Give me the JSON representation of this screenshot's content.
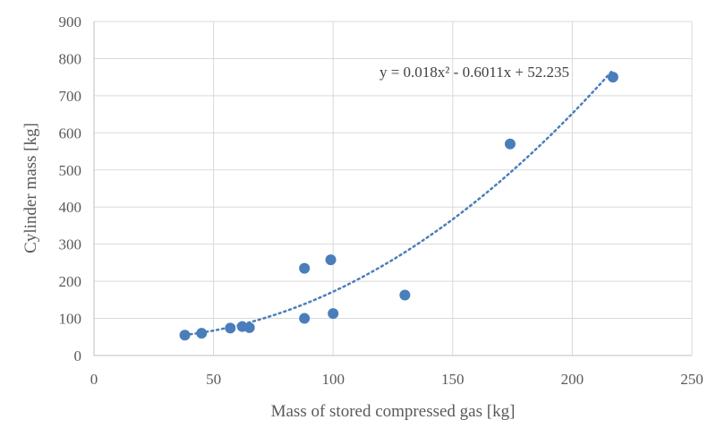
{
  "chart_data": {
    "type": "scatter",
    "title": "",
    "xlabel": "Mass of stored compressed gas [kg]",
    "ylabel": "Cylinder mass [kg]",
    "xlim": [
      0,
      250
    ],
    "ylim": [
      0,
      900
    ],
    "x_ticks": [
      "0",
      "50",
      "100",
      "150",
      "200",
      "250"
    ],
    "y_ticks": [
      "0",
      "100",
      "200",
      "300",
      "400",
      "500",
      "600",
      "700",
      "800",
      "900"
    ],
    "grid": true,
    "legend": "none",
    "marker_color": "#4a7ebb",
    "series": [
      {
        "points": [
          {
            "x": 38,
            "y": 55
          },
          {
            "x": 45,
            "y": 60
          },
          {
            "x": 57,
            "y": 74
          },
          {
            "x": 62,
            "y": 78
          },
          {
            "x": 65,
            "y": 75
          },
          {
            "x": 88,
            "y": 235
          },
          {
            "x": 88,
            "y": 100
          },
          {
            "x": 99,
            "y": 258
          },
          {
            "x": 100,
            "y": 113
          },
          {
            "x": 130,
            "y": 163
          },
          {
            "x": 174,
            "y": 570
          },
          {
            "x": 217,
            "y": 750
          }
        ]
      }
    ],
    "trendline": {
      "type": "polynomial",
      "coefficients": {
        "a": 0.018,
        "b": -0.6011,
        "c": 52.235
      },
      "x_range": [
        38,
        217
      ],
      "equation_label": "y = 0.018x² - 0.6011x + 52.235"
    }
  }
}
